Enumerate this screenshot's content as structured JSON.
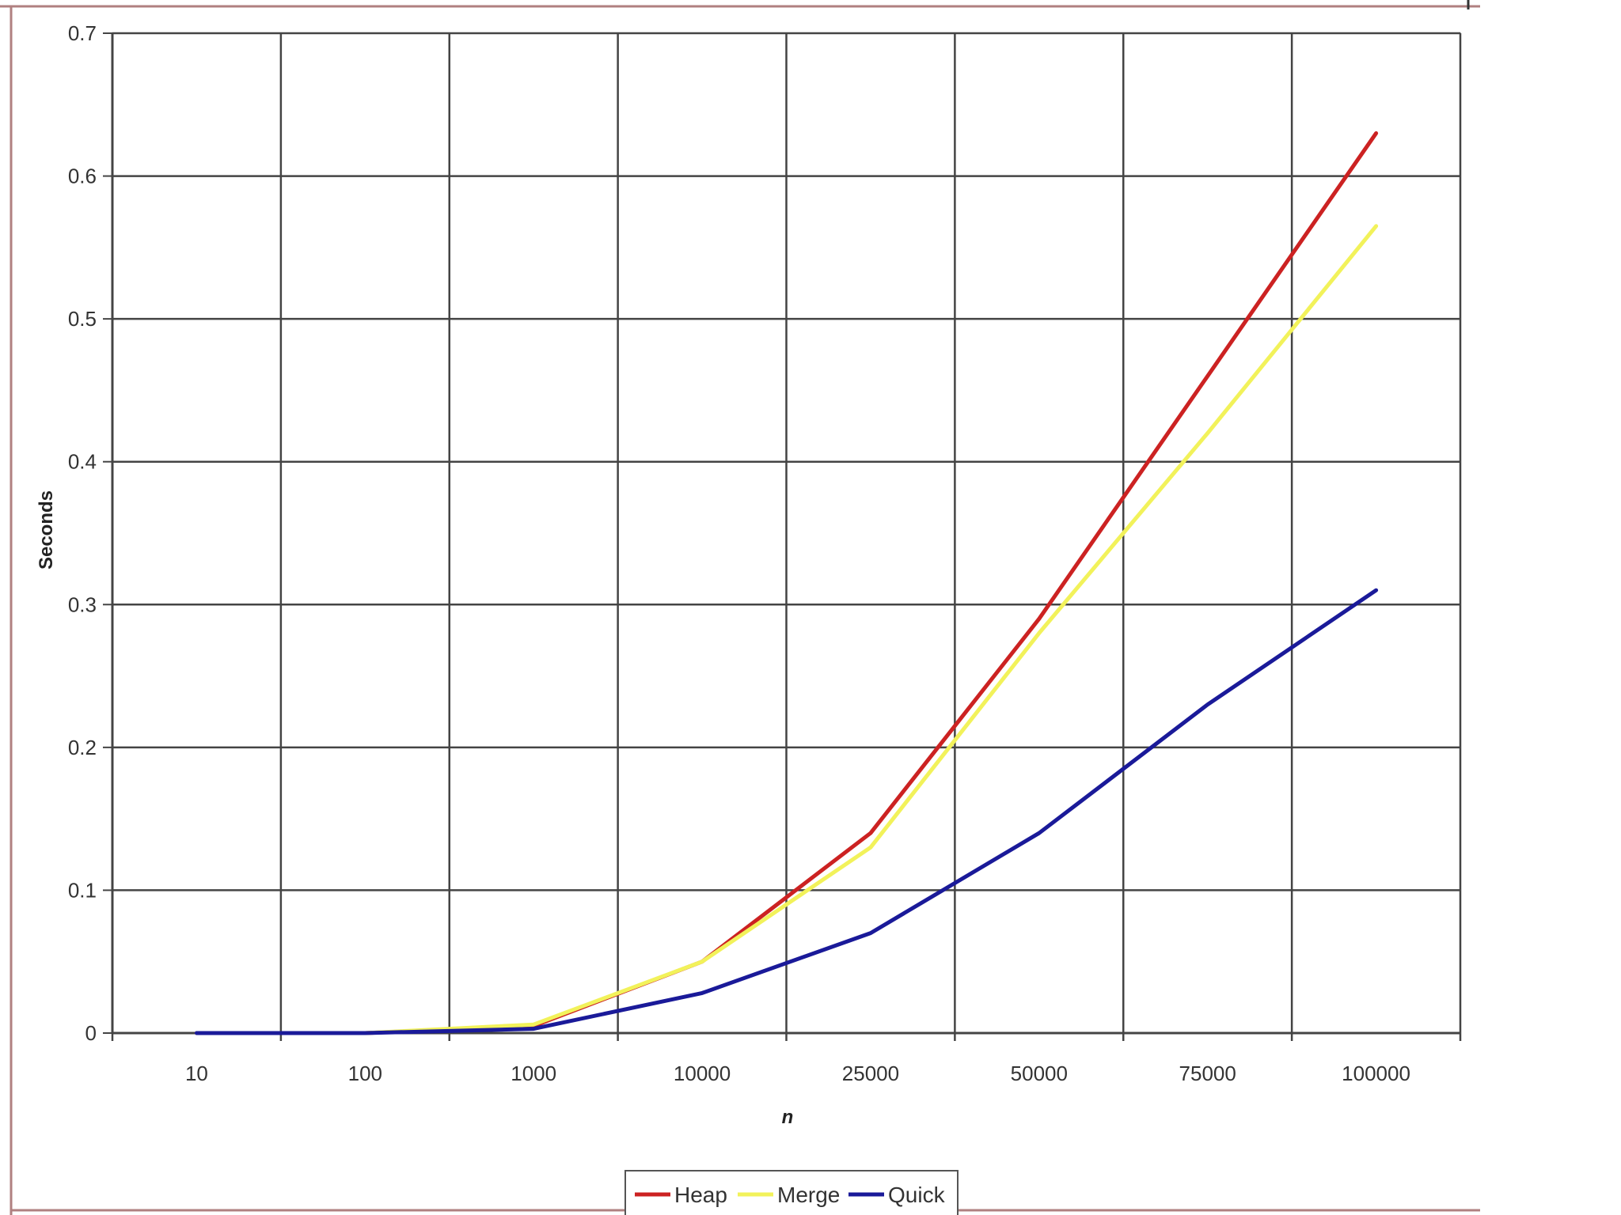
{
  "chart_data": {
    "type": "line",
    "categories": [
      "10",
      "100",
      "1000",
      "10000",
      "25000",
      "50000",
      "75000",
      "100000"
    ],
    "xlabel": "n",
    "ylabel": "Seconds",
    "ylim": [
      0,
      0.7
    ],
    "yticks": [
      "0",
      "0.1",
      "0.2",
      "0.3",
      "0.4",
      "0.5",
      "0.6",
      "0.7"
    ],
    "grid": true,
    "legend_position": "bottom-center",
    "series": [
      {
        "name": "Heap",
        "color": "#cc2222",
        "values": [
          0,
          0,
          0.005,
          0.05,
          0.14,
          0.29,
          0.46,
          0.63
        ]
      },
      {
        "name": "Merge",
        "color": "#f2f25a",
        "values": [
          0,
          0,
          0.006,
          0.05,
          0.13,
          0.28,
          0.42,
          0.565
        ]
      },
      {
        "name": "Quick",
        "color": "#1a1a99",
        "values": [
          0,
          0,
          0.003,
          0.028,
          0.07,
          0.14,
          0.23,
          0.31
        ]
      }
    ]
  }
}
